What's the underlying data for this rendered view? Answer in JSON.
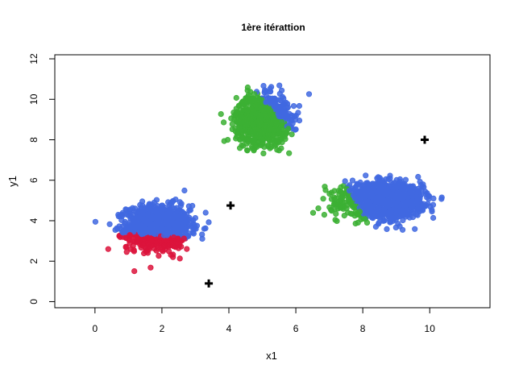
{
  "chart_data": {
    "type": "scatter",
    "title": "1ère itérattion",
    "xlabel": "x1",
    "ylabel": "y1",
    "xlim": [
      -1.2,
      11.8
    ],
    "ylim": [
      -0.3,
      12.2
    ],
    "x_ticks": [
      0,
      2,
      4,
      6,
      8,
      10
    ],
    "y_ticks": [
      0,
      2,
      4,
      6,
      8,
      10,
      12
    ],
    "grid": false,
    "colors": {
      "blue": "#4169E1",
      "red": "#DC143C",
      "green": "#3CB034",
      "centroid": "#000000"
    },
    "point_clusters": [
      {
        "center": [
          1.9,
          3.7
        ],
        "spread": [
          0.85,
          0.95
        ],
        "count": 1300
      },
      {
        "center": [
          5.0,
          9.0
        ],
        "spread": [
          0.7,
          1.05
        ],
        "count": 1100
      },
      {
        "center": [
          8.6,
          5.0
        ],
        "spread": [
          1.05,
          0.75
        ],
        "count": 1400
      }
    ],
    "partition": {
      "red_region": "below line through (0.5, 3.45) and (3.4, 3.05)",
      "green_region": "upper cluster: right of line through (4.2, 11.5) and (6.1, 8.0); right cluster: right of line through (7.2, 6.6) and (8.3, 3.5)"
    },
    "centroids": [
      {
        "x": 3.4,
        "y": 0.9
      },
      {
        "x": 4.05,
        "y": 4.75
      },
      {
        "x": 9.85,
        "y": 8.0
      }
    ]
  }
}
